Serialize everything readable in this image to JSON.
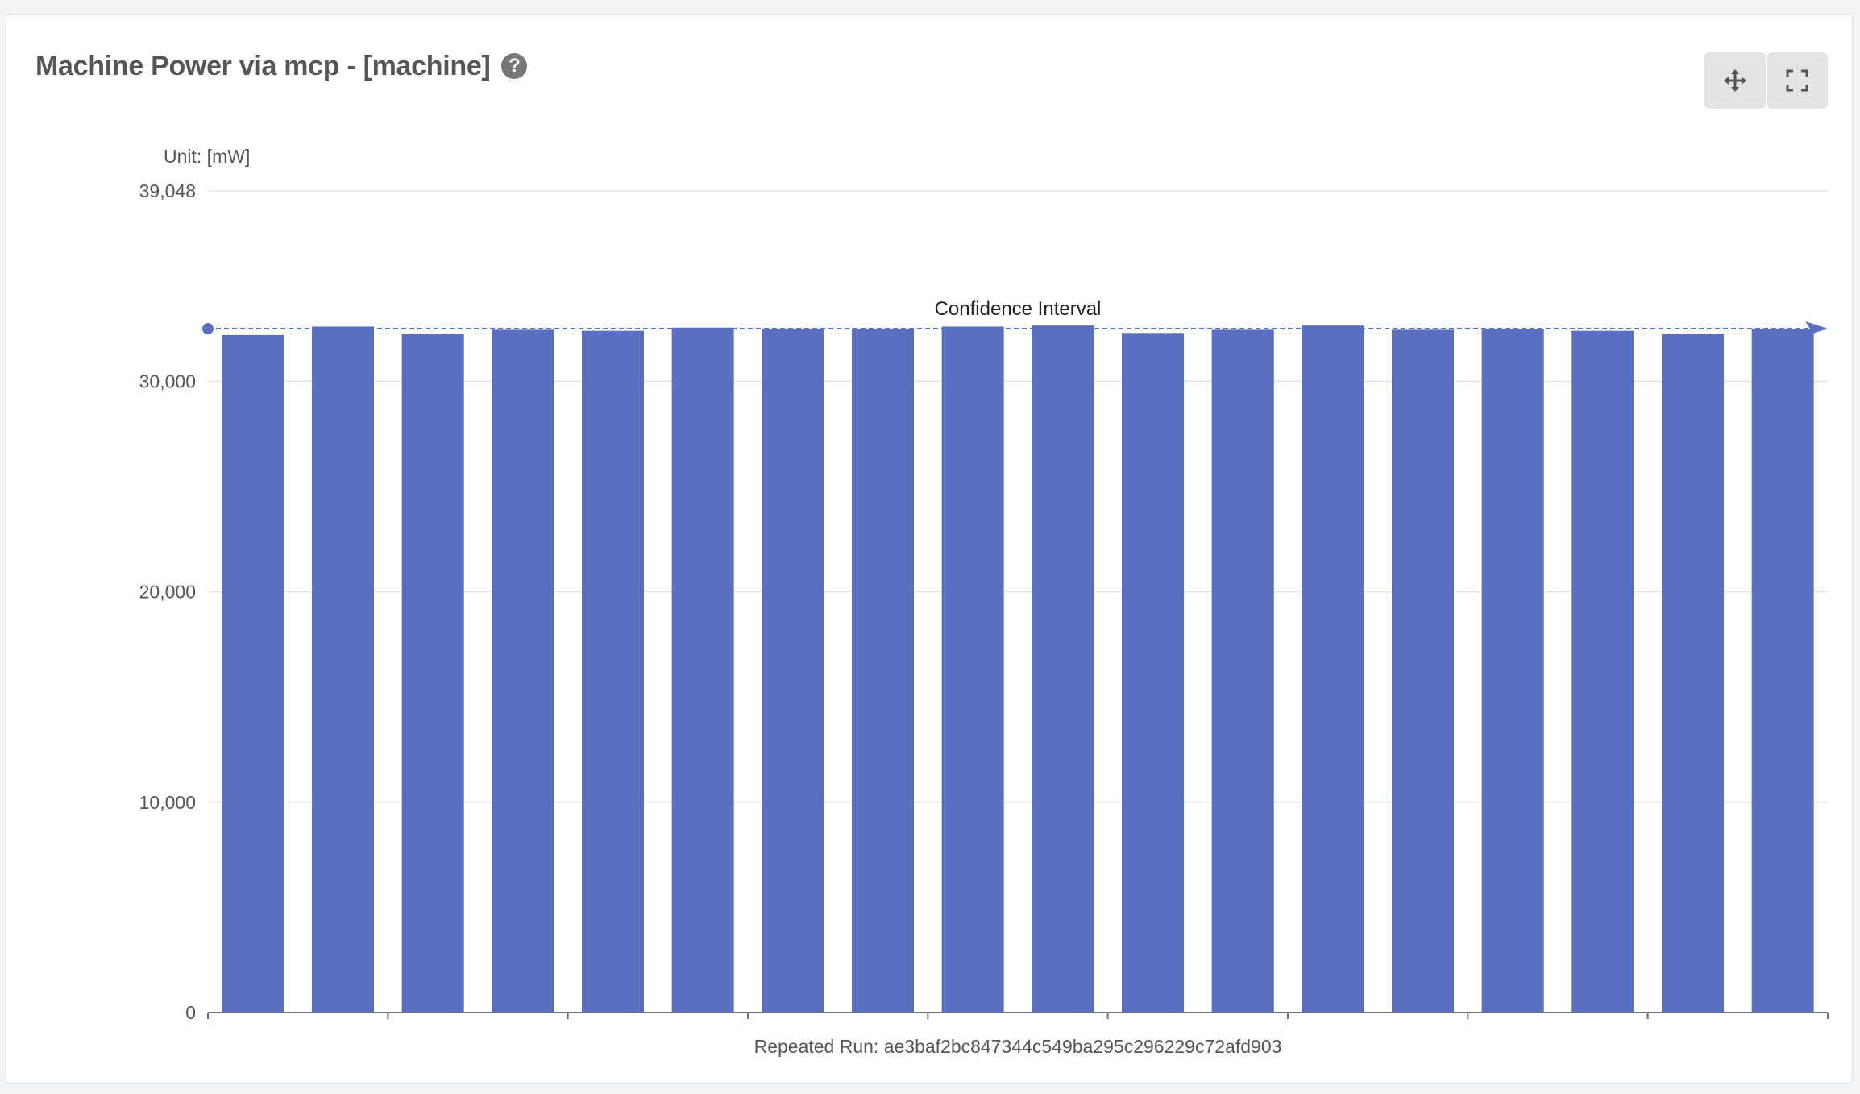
{
  "panel": {
    "title": "Machine Power via mcp - [machine]",
    "help_icon": "question-circle-icon",
    "buttons": [
      {
        "icon": "move-arrows-icon"
      },
      {
        "icon": "fullscreen-icon"
      }
    ]
  },
  "chart_data": {
    "type": "bar",
    "unit_label": "Unit: [mW]",
    "xlabel": "Repeated Run: ae3baf2bc847344c549ba295c296229c72afd903",
    "ylim": [
      0,
      39048
    ],
    "y_ticks": [
      0,
      10000,
      20000,
      30000,
      39048
    ],
    "y_tick_labels": [
      "0",
      "10,000",
      "20,000",
      "30,000",
      "39,048"
    ],
    "grid": true,
    "values": [
      32200,
      32600,
      32250,
      32450,
      32400,
      32550,
      32500,
      32500,
      32600,
      32650,
      32300,
      32450,
      32650,
      32450,
      32500,
      32400,
      32250,
      32500
    ],
    "bar_color": "#5b6fc1",
    "markline": {
      "label": "Confidence Interval",
      "value": 32500,
      "color": "#5b6fc1"
    }
  }
}
